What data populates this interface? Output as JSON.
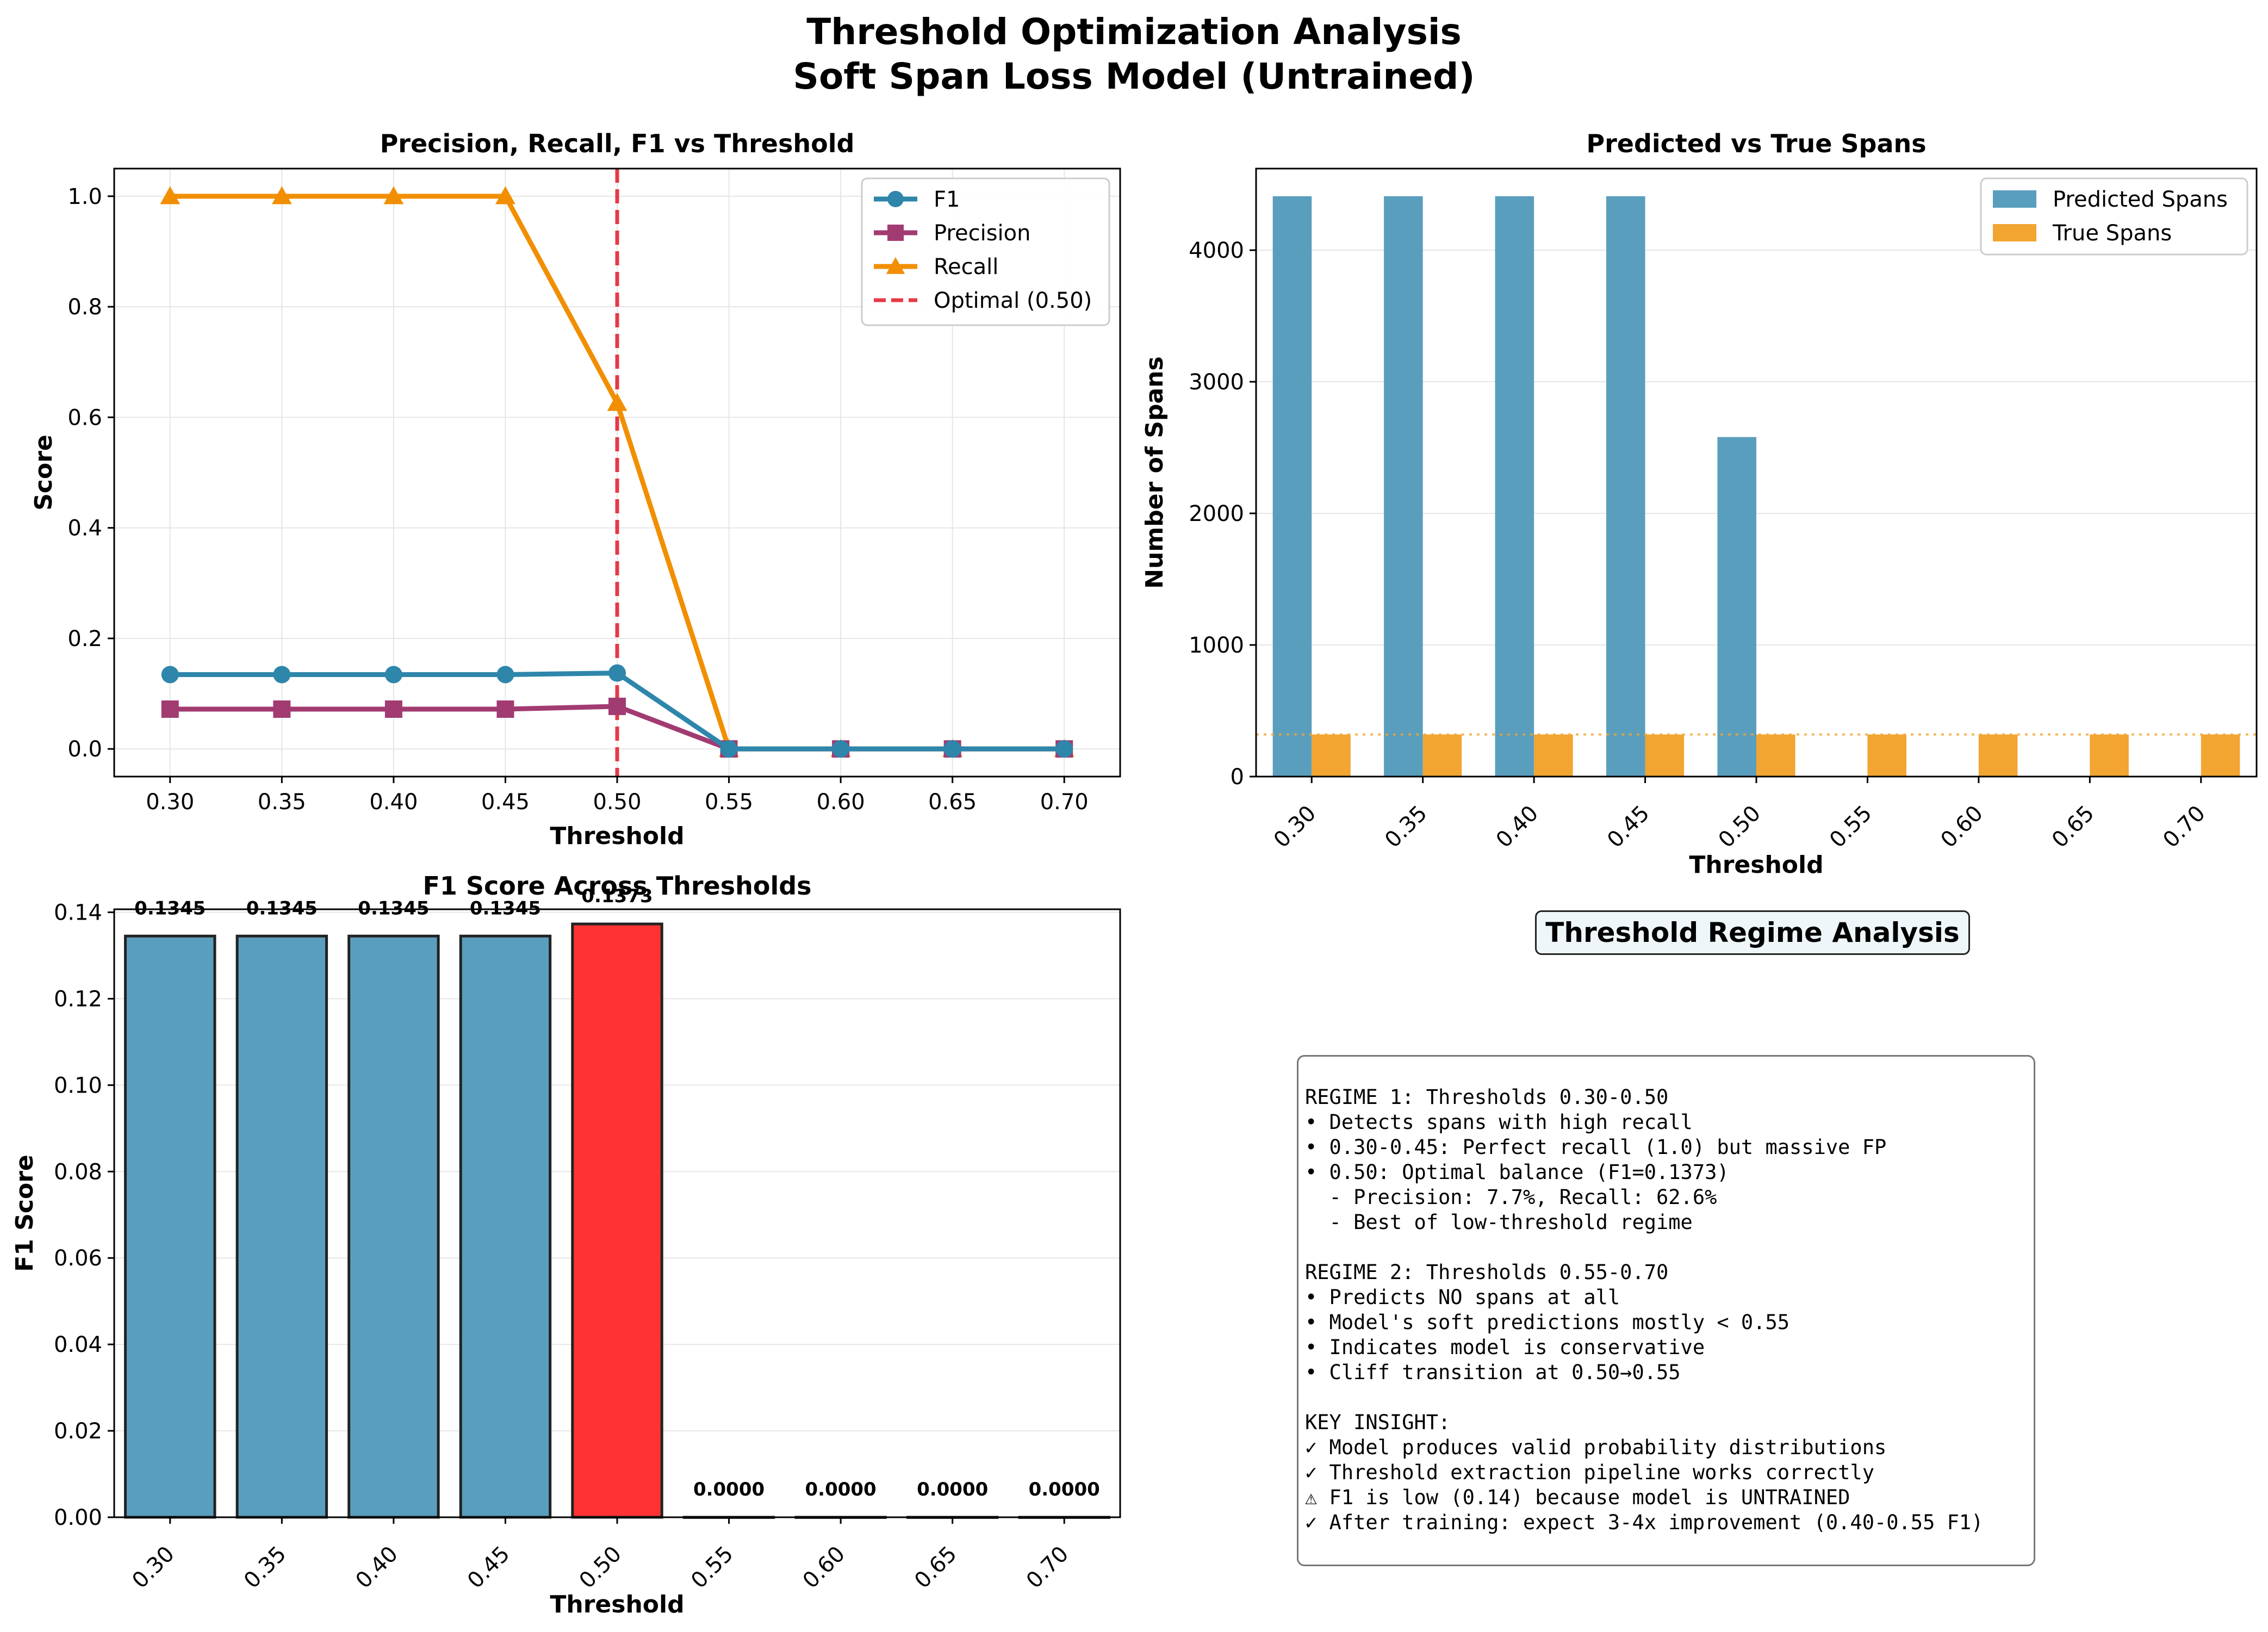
{
  "figure": {
    "title_line1": "Threshold Optimization Analysis",
    "title_line2": "Soft Span Loss Model (Untrained)"
  },
  "colors": {
    "f1": "#2E86AB",
    "precision": "#A23B72",
    "recall": "#F18F01",
    "optimal": "#E63946",
    "predicted_bar": "#5A9EBE",
    "true_bar": "#F2A531",
    "best_bar": "#FF3333"
  },
  "chart_data": [
    {
      "type": "line",
      "title": "Precision, Recall, F1 vs Threshold",
      "xlabel": "Threshold",
      "ylabel": "Score",
      "x": [
        0.3,
        0.35,
        0.4,
        0.45,
        0.5,
        0.55,
        0.6,
        0.65,
        0.7
      ],
      "x_tick_labels": [
        "0.30",
        "0.35",
        "0.40",
        "0.45",
        "0.50",
        "0.55",
        "0.60",
        "0.65",
        "0.70"
      ],
      "y_ticks": [
        "0.0",
        "0.2",
        "0.4",
        "0.6",
        "0.8",
        "1.0"
      ],
      "xlim": [
        0.275,
        0.725
      ],
      "ylim": [
        -0.05,
        1.05
      ],
      "series": [
        {
          "name": "F1",
          "marker": "circle",
          "color": "#2E86AB",
          "values": [
            0.1345,
            0.1345,
            0.1345,
            0.1345,
            0.1373,
            0,
            0,
            0,
            0
          ]
        },
        {
          "name": "Precision",
          "marker": "square",
          "color": "#A23B72",
          "values": [
            0.072,
            0.072,
            0.072,
            0.072,
            0.077,
            0,
            0,
            0,
            0
          ]
        },
        {
          "name": "Recall",
          "marker": "triangle",
          "color": "#F18F01",
          "values": [
            1.0,
            1.0,
            1.0,
            1.0,
            0.626,
            0,
            0,
            0,
            0
          ]
        }
      ],
      "vline": {
        "x": 0.5,
        "label": "Optimal (0.50)",
        "color": "#E63946"
      },
      "grid": true,
      "legend": "top-right"
    },
    {
      "type": "bar",
      "title": "Predicted vs True Spans",
      "xlabel": "Threshold",
      "ylabel": "Number of Spans",
      "categories": [
        "0.30",
        "0.35",
        "0.40",
        "0.45",
        "0.50",
        "0.55",
        "0.60",
        "0.65",
        "0.70"
      ],
      "y_ticks": [
        "0",
        "1000",
        "2000",
        "3000",
        "4000"
      ],
      "ylim": [
        0,
        4620
      ],
      "series": [
        {
          "name": "Predicted Spans",
          "color": "#5A9EBE",
          "values": [
            4410,
            4410,
            4410,
            4410,
            2580,
            0,
            0,
            0,
            0
          ]
        },
        {
          "name": "True Spans",
          "color": "#F2A531",
          "values": [
            320,
            320,
            320,
            320,
            320,
            320,
            320,
            320,
            320
          ]
        }
      ],
      "hline": {
        "y": 320,
        "style": "dotted"
      },
      "grid": true,
      "legend": "top-right"
    },
    {
      "type": "bar",
      "title": "F1 Score Across Thresholds",
      "xlabel": "Threshold",
      "ylabel": "F1 Score",
      "categories": [
        "0.30",
        "0.35",
        "0.40",
        "0.45",
        "0.50",
        "0.55",
        "0.60",
        "0.65",
        "0.70"
      ],
      "values": [
        0.1345,
        0.1345,
        0.1345,
        0.1345,
        0.1373,
        0.0,
        0.0,
        0.0,
        0.0
      ],
      "value_labels": [
        "0.1345",
        "0.1345",
        "0.1345",
        "0.1345",
        "0.1373",
        "0.0000",
        "0.0000",
        "0.0000",
        "0.0000"
      ],
      "highlight_index": 4,
      "y_ticks": [
        "0.00",
        "0.02",
        "0.04",
        "0.06",
        "0.08",
        "0.10",
        "0.12",
        "0.14"
      ],
      "ylim": [
        0,
        0.1407
      ],
      "grid": true
    }
  ],
  "regime_panel": {
    "title": "Threshold Regime Analysis",
    "text": "REGIME 1: Thresholds 0.30-0.50\n• Detects spans with high recall\n• 0.30-0.45: Perfect recall (1.0) but massive FP\n• 0.50: Optimal balance (F1=0.1373)\n  - Precision: 7.7%, Recall: 62.6%\n  - Best of low-threshold regime\n\nREGIME 2: Thresholds 0.55-0.70\n• Predicts NO spans at all\n• Model's soft predictions mostly < 0.55\n• Indicates model is conservative\n• Cliff transition at 0.50→0.55\n\nKEY INSIGHT:\n✓ Model produces valid probability distributions\n✓ Threshold extraction pipeline works correctly\n⚠ F1 is low (0.14) because model is UNTRAINED\n✓ After training: expect 3-4x improvement (0.40-0.55 F1)"
  }
}
